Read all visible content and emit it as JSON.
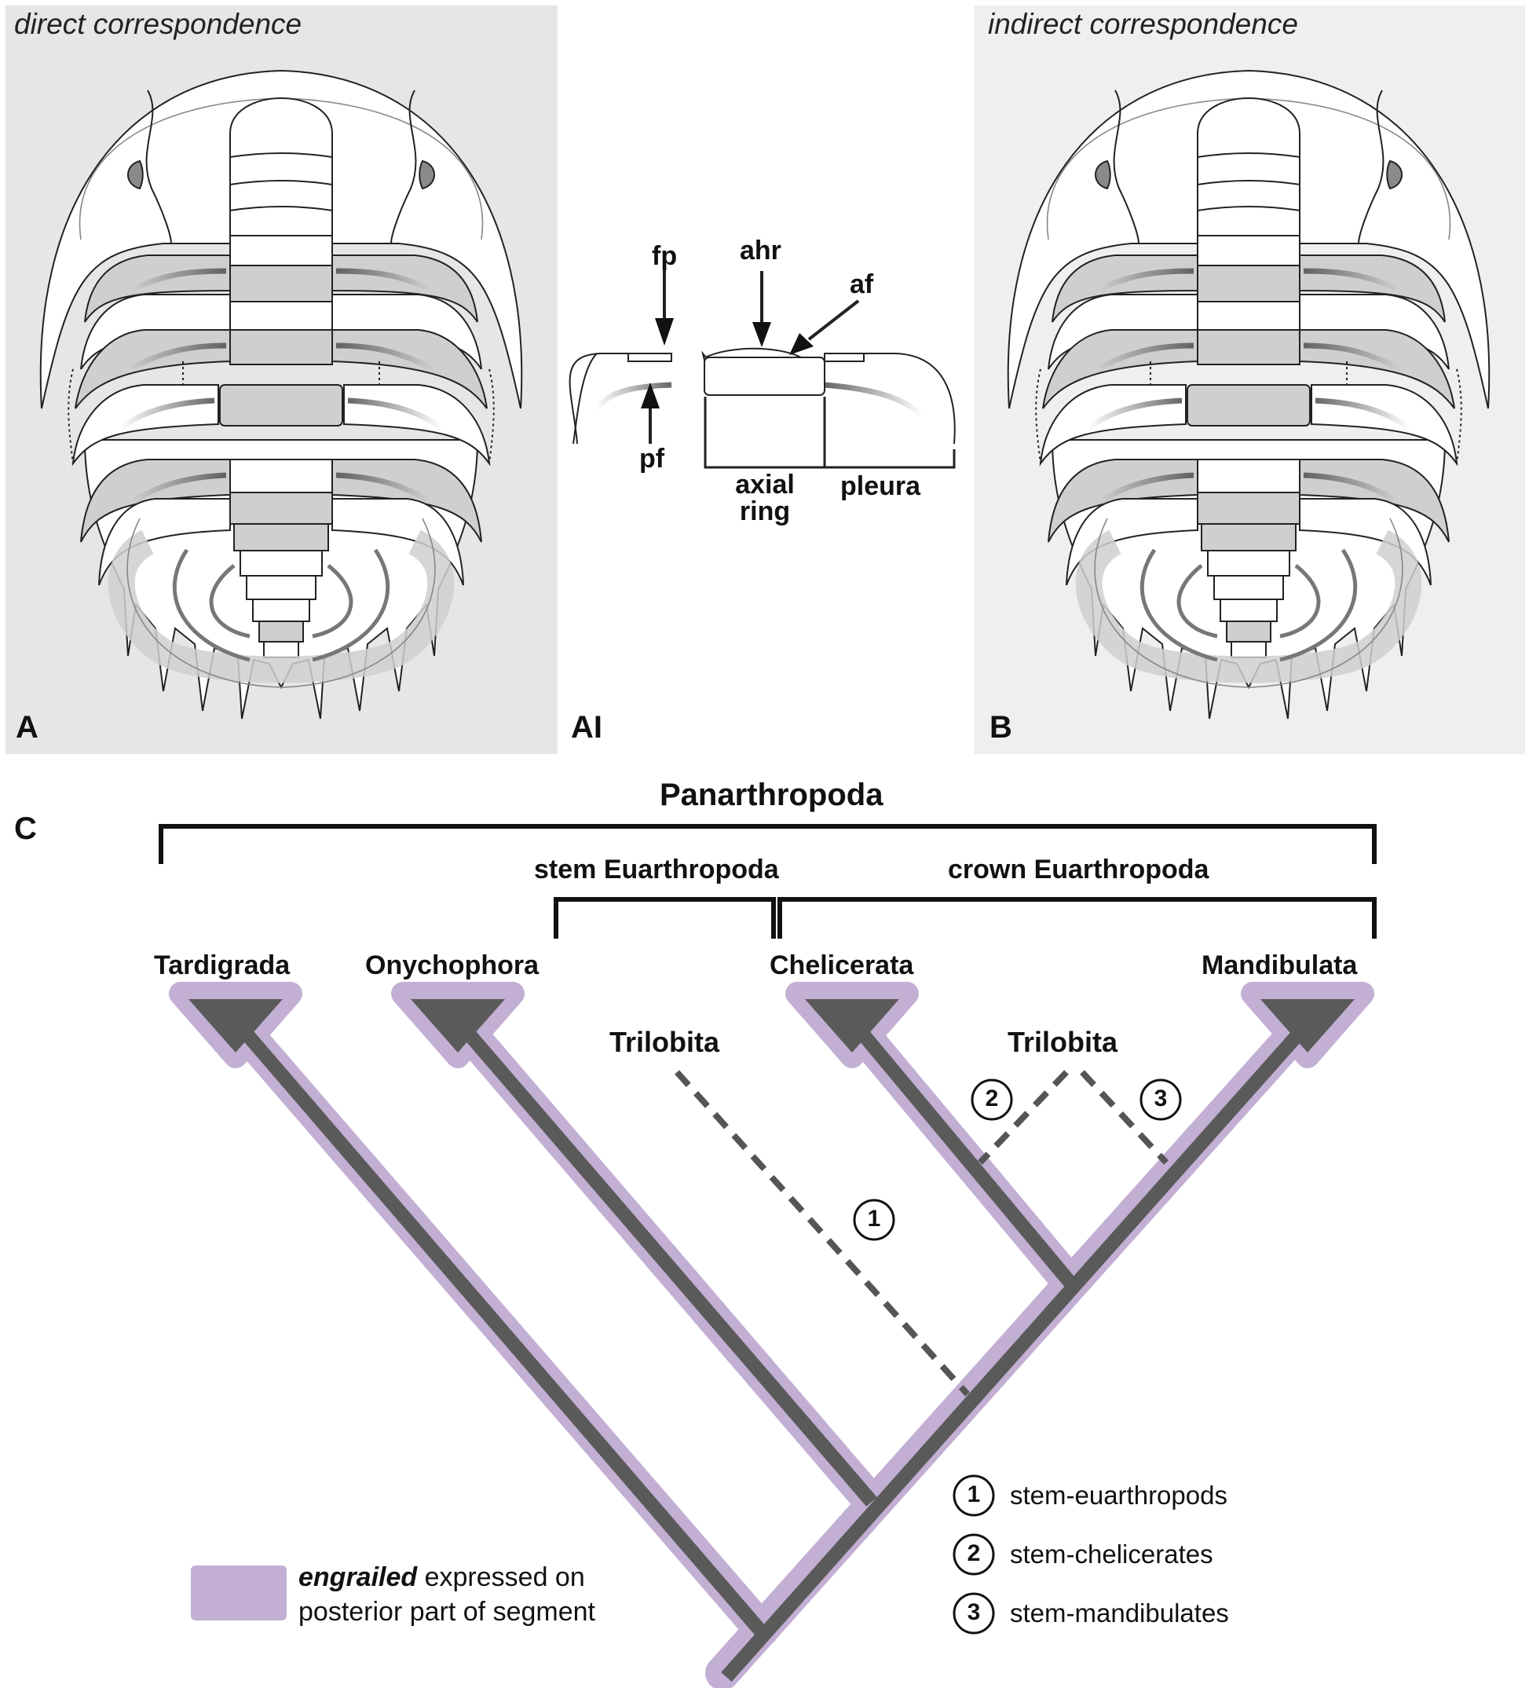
{
  "panels": {
    "A": {
      "title": "direct correspondence",
      "letter": "A"
    },
    "AI": {
      "letter": "AI",
      "labels": {
        "fp": "fp",
        "ahr": "ahr",
        "af": "af",
        "pf": "pf",
        "axial_ring": [
          "axial",
          "ring"
        ],
        "pleura": "pleura"
      }
    },
    "B": {
      "title": "indirect correspondence",
      "letter": "B"
    },
    "C": {
      "letter": "C"
    }
  },
  "tree": {
    "clade_root": "Panarthropoda",
    "brackets": {
      "stem": "stem Euarthropoda",
      "crown": "crown Euarthropoda"
    },
    "taxa": [
      "Tardigrada",
      "Onychophora",
      "Chelicerata",
      "Mandibulata"
    ],
    "fossil": "Trilobita",
    "placements": [
      {
        "num": "1",
        "label": "stem-euarthropods"
      },
      {
        "num": "2",
        "label": "stem-chelicerates"
      },
      {
        "num": "3",
        "label": "stem-mandibulates"
      }
    ]
  },
  "legend": {
    "term": "engrailed",
    "text_line1": " expressed on",
    "text_line2": "posterior part of segment"
  },
  "colors": {
    "panel_a_bg": "#e6e6e6",
    "panel_b_bg": "#efefef",
    "engrailed_purple": "#c2afd3",
    "branch_dark": "#5a5a5a",
    "shade_gray": "#cfcfcf"
  }
}
